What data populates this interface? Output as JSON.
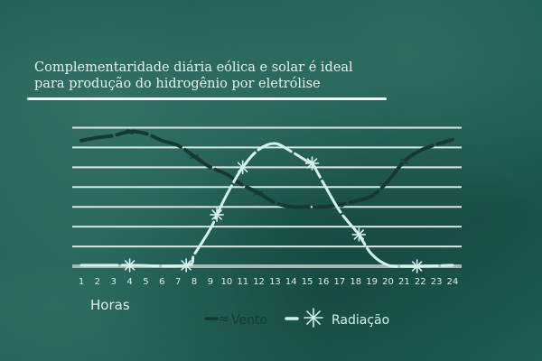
{
  "title": {
    "line1": "Complementaridade diária eólica e solar é ideal",
    "line2": "para produção do hidrogênio por eletrólise"
  },
  "chart_data": {
    "type": "line",
    "xlabel": "Horas",
    "ylabel": "",
    "x_ticks": [
      "1",
      "2",
      "3",
      "4",
      "5",
      "6",
      "7",
      "8",
      "9",
      "10",
      "11",
      "12",
      "13",
      "14",
      "15",
      "16",
      "17",
      "18",
      "19",
      "20",
      "21",
      "22",
      "23",
      "24"
    ],
    "xlim": [
      1,
      24
    ],
    "ylim": [
      0,
      7
    ],
    "grid": "horizontal",
    "legend_position": "bottom",
    "series": [
      {
        "name": "Vento",
        "color": "#163a33",
        "marker": "≈",
        "x": [
          1,
          2,
          3,
          4,
          5,
          6,
          7,
          8,
          9,
          10,
          11,
          12,
          13,
          14,
          15,
          16,
          17,
          18,
          19,
          20,
          21,
          22,
          23,
          24
        ],
        "y": [
          6.35,
          6.5,
          6.6,
          6.8,
          6.7,
          6.35,
          6.1,
          5.55,
          5.0,
          4.65,
          4.1,
          3.7,
          3.2,
          3.0,
          3.0,
          3.0,
          3.1,
          3.3,
          3.55,
          4.3,
          5.3,
          5.85,
          6.15,
          6.4
        ],
        "marker_x": [
          4,
          8,
          12,
          17,
          21
        ]
      },
      {
        "name": "Radiação",
        "color": "#d6f0eb",
        "marker": "✳",
        "x": [
          1,
          4,
          7.5,
          8,
          9,
          9.4,
          10,
          11,
          12,
          13,
          14,
          15,
          15.3,
          16,
          17,
          18,
          18.2,
          19,
          20,
          21,
          22,
          24
        ],
        "y": [
          0.05,
          0.05,
          0.05,
          0.6,
          1.9,
          2.6,
          3.6,
          5.0,
          5.9,
          6.2,
          5.8,
          5.3,
          5.2,
          4.2,
          2.8,
          1.8,
          1.6,
          0.6,
          0.05,
          0,
          0,
          0.05
        ],
        "marker_x": [
          4,
          7.5,
          9.4,
          11,
          15.3,
          18.2,
          21.8
        ]
      }
    ]
  }
}
